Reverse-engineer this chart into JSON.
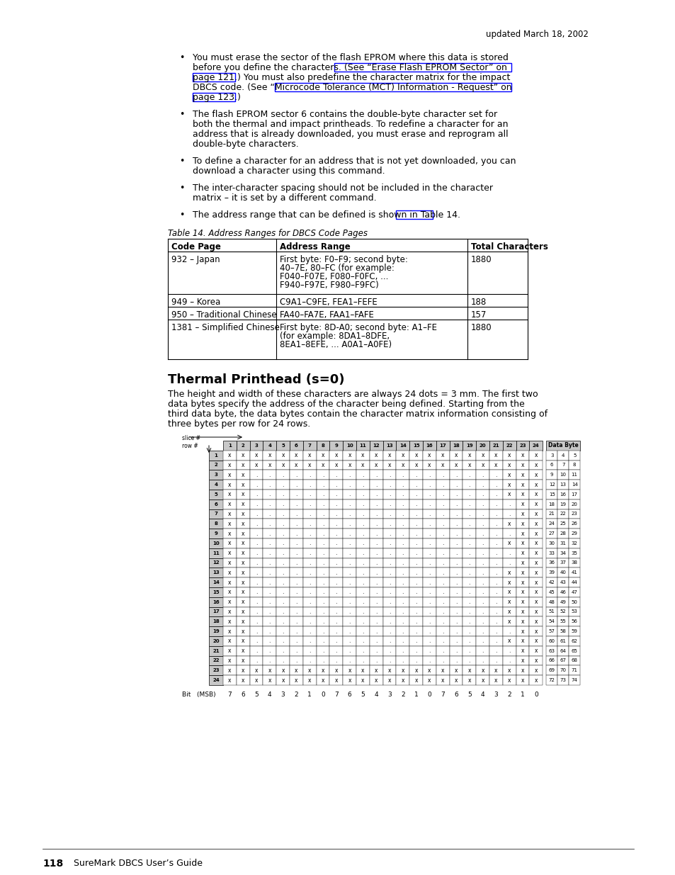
{
  "page_header": "updated March 18, 2002",
  "table_caption": "Table 14. Address Ranges for DBCS Code Pages",
  "table_headers": [
    "Code Page",
    "Address Range",
    "Total Characters"
  ],
  "table_rows": [
    [
      "932 – Japan",
      "First byte: F0–F9; second byte:\n40–7E, 80–FC (for example:\nF040–F07E, F080–F0FC, ...\nF940–F97E, F980–F9FC)",
      "1880"
    ],
    [
      "949 – Korea",
      "C9A1–C9FE, FEA1–FEFE",
      "188"
    ],
    [
      "950 – Traditional Chinese",
      "FA40–FA7E, FAA1–FAFE",
      "157"
    ],
    [
      "1381 – Simplified Chinese",
      "First byte: 8D-A0; second byte: A1–FE\n(for example: 8DA1–8DFE,\n8EA1–8EFE, ... A0A1–A0FE)",
      "1880"
    ]
  ],
  "section_title": "Thermal Printhead (s=0)",
  "section_body_lines": [
    "The height and width of these characters are always 24 dots = 3 mm. The first two",
    "data bytes specify the address of the character being defined. Starting from the",
    "third data byte, the data bytes contain the character matrix information consisting of",
    "three bytes per row for 24 rows."
  ],
  "grid_col_labels": [
    "1",
    "2",
    "3",
    "4",
    "5",
    "6",
    "7",
    "8",
    "9",
    "10",
    "11",
    "12",
    "13",
    "14",
    "15",
    "16",
    "17",
    "18",
    "19",
    "20",
    "21",
    "22",
    "23",
    "24"
  ],
  "grid_row_labels": [
    "1",
    "2",
    "3",
    "4",
    "5",
    "6",
    "7",
    "8",
    "9",
    "10",
    "11",
    "12",
    "13",
    "14",
    "15",
    "16",
    "17",
    "18",
    "19",
    "20",
    "21",
    "22",
    "23",
    "24"
  ],
  "data_byte_label": "Data Byte",
  "data_byte_rows": [
    [
      "3",
      "4",
      "5"
    ],
    [
      "6",
      "7",
      "8"
    ],
    [
      "9",
      "10",
      "11"
    ],
    [
      "12",
      "13",
      "14"
    ],
    [
      "15",
      "16",
      "17"
    ],
    [
      "18",
      "19",
      "20"
    ],
    [
      "21",
      "22",
      "23"
    ],
    [
      "24",
      "25",
      "26"
    ],
    [
      "27",
      "28",
      "29"
    ],
    [
      "30",
      "31",
      "32"
    ],
    [
      "33",
      "34",
      "35"
    ],
    [
      "36",
      "37",
      "38"
    ],
    [
      "39",
      "40",
      "41"
    ],
    [
      "42",
      "43",
      "44"
    ],
    [
      "45",
      "46",
      "47"
    ],
    [
      "48",
      "49",
      "50"
    ],
    [
      "51",
      "52",
      "53"
    ],
    [
      "54",
      "55",
      "56"
    ],
    [
      "57",
      "58",
      "59"
    ],
    [
      "60",
      "61",
      "62"
    ],
    [
      "63",
      "64",
      "65"
    ],
    [
      "66",
      "67",
      "68"
    ],
    [
      "69",
      "70",
      "71"
    ],
    [
      "72",
      "73",
      "74"
    ]
  ],
  "bit_values": [
    "7",
    "6",
    "5",
    "4",
    "3",
    "2",
    "1",
    "0",
    "7",
    "6",
    "5",
    "4",
    "3",
    "2",
    "1",
    "0",
    "7",
    "6",
    "5",
    "4",
    "3",
    "2",
    "1",
    "0"
  ],
  "page_number": "118",
  "page_footer_text": "SureMark DBCS User’s Guide",
  "grid_data": [
    [
      "x",
      "x",
      "x",
      "x",
      "x",
      "x",
      "x",
      "x",
      "x",
      "x",
      "x",
      "x",
      "x",
      "x",
      "x",
      "x",
      "x",
      "x",
      "x",
      "x",
      "x",
      "x",
      "x",
      "x"
    ],
    [
      "x",
      "x",
      "x",
      "x",
      "x",
      "x",
      "x",
      "x",
      "x",
      "x",
      "x",
      "x",
      "x",
      "x",
      "x",
      "x",
      "x",
      "x",
      "x",
      "x",
      "x",
      "x",
      "x",
      "x"
    ],
    [
      "x",
      "x",
      "•",
      "•",
      "•",
      "•",
      "•",
      "•",
      "•",
      "•",
      "•",
      "•",
      "•",
      "•",
      "•",
      "•",
      "•",
      "•",
      "•",
      "•",
      "•",
      "x",
      "x",
      "x"
    ],
    [
      "x",
      "x",
      "•",
      "•",
      "•",
      "•",
      "•",
      "•",
      "•",
      "•",
      "•",
      "•",
      "•",
      "•",
      "•",
      "•",
      "•",
      "•",
      "•",
      "•",
      "•",
      "x",
      "x",
      "x"
    ],
    [
      "x",
      "x",
      "•",
      "•",
      "•",
      "•",
      "•",
      "•",
      "•",
      "•",
      "•",
      "•",
      "•",
      "•",
      "•",
      "•",
      "•",
      "•",
      "•",
      "•",
      "•",
      "x",
      "x",
      "x"
    ],
    [
      "x",
      "x",
      "•",
      "•",
      "•",
      "•",
      "•",
      "•",
      "•",
      "•",
      "•",
      "•",
      "•",
      "•",
      "•",
      "•",
      "•",
      "•",
      "•",
      "•",
      "•",
      "•",
      "x",
      "x"
    ],
    [
      "x",
      "x",
      "•",
      "•",
      "•",
      "•",
      "•",
      "•",
      "•",
      "•",
      "•",
      "•",
      "•",
      "•",
      "•",
      "•",
      "•",
      "•",
      "•",
      "•",
      "•",
      "•",
      "x",
      "x"
    ],
    [
      "x",
      "x",
      "•",
      "•",
      "•",
      "•",
      "•",
      "•",
      "•",
      "•",
      "•",
      "•",
      "•",
      "•",
      "•",
      "•",
      "•",
      "•",
      "•",
      "•",
      "•",
      "x",
      "x",
      "x"
    ],
    [
      "x",
      "x",
      "•",
      "•",
      "•",
      "•",
      "•",
      "•",
      "•",
      "•",
      "•",
      "•",
      "•",
      "•",
      "•",
      "•",
      "•",
      "•",
      "•",
      "•",
      "•",
      "•",
      "x",
      "x"
    ],
    [
      "x",
      "x",
      "•",
      "•",
      "•",
      "•",
      "•",
      "•",
      "•",
      "•",
      "•",
      "•",
      "•",
      "•",
      "•",
      "•",
      "•",
      "•",
      "•",
      "•",
      "•",
      "x",
      "x",
      "x"
    ],
    [
      "x",
      "x",
      "•",
      "•",
      "•",
      "•",
      "•",
      "•",
      "•",
      "•",
      "•",
      "•",
      "•",
      "•",
      "•",
      "•",
      "•",
      "•",
      "•",
      "•",
      "•",
      "•",
      "x",
      "x"
    ],
    [
      "x",
      "x",
      "•",
      "•",
      "•",
      "•",
      "•",
      "•",
      "•",
      "•",
      "•",
      "•",
      "•",
      "•",
      "•",
      "•",
      "•",
      "•",
      "•",
      "•",
      "•",
      "•",
      "x",
      "x"
    ],
    [
      "x",
      "x",
      "•",
      "•",
      "•",
      "•",
      "•",
      "•",
      "•",
      "•",
      "•",
      "•",
      "•",
      "•",
      "•",
      "•",
      "•",
      "•",
      "•",
      "•",
      "•",
      "x",
      "x",
      "x"
    ],
    [
      "x",
      "x",
      "•",
      "•",
      "•",
      "•",
      "•",
      "•",
      "•",
      "•",
      "•",
      "•",
      "•",
      "•",
      "•",
      "•",
      "•",
      "•",
      "•",
      "•",
      "•",
      "x",
      "x",
      "x"
    ],
    [
      "x",
      "x",
      "•",
      "•",
      "•",
      "•",
      "•",
      "•",
      "•",
      "•",
      "•",
      "•",
      "•",
      "•",
      "•",
      "•",
      "•",
      "•",
      "•",
      "•",
      "•",
      "x",
      "x",
      "x"
    ],
    [
      "x",
      "x",
      "•",
      "•",
      "•",
      "•",
      "•",
      "•",
      "•",
      "•",
      "•",
      "•",
      "•",
      "•",
      "•",
      "•",
      "•",
      "•",
      "•",
      "•",
      "•",
      "x",
      "x",
      "x"
    ],
    [
      "x",
      "x",
      "•",
      "•",
      "•",
      "•",
      "•",
      "•",
      "•",
      "•",
      "•",
      "•",
      "•",
      "•",
      "•",
      "•",
      "•",
      "•",
      "•",
      "•",
      "•",
      "x",
      "x",
      "x"
    ],
    [
      "x",
      "x",
      "•",
      "•",
      "•",
      "•",
      "•",
      "•",
      "•",
      "•",
      "•",
      "•",
      "•",
      "•",
      "•",
      "•",
      "•",
      "•",
      "•",
      "•",
      "•",
      "x",
      "x",
      "x"
    ],
    [
      "x",
      "x",
      "•",
      "•",
      "•",
      "•",
      "•",
      "•",
      "•",
      "•",
      "•",
      "•",
      "•",
      "•",
      "•",
      "•",
      "•",
      "•",
      "•",
      "•",
      "•",
      "•",
      "x",
      "x"
    ],
    [
      "x",
      "x",
      "•",
      "•",
      "•",
      "•",
      "•",
      "•",
      "•",
      "•",
      "•",
      "•",
      "•",
      "•",
      "•",
      "•",
      "•",
      "•",
      "•",
      "•",
      "•",
      "x",
      "x",
      "x"
    ],
    [
      "x",
      "x",
      "•",
      "•",
      "•",
      "•",
      "•",
      "•",
      "•",
      "•",
      "•",
      "•",
      "•",
      "•",
      "•",
      "•",
      "•",
      "•",
      "•",
      "•",
      "•",
      "•",
      "x",
      "x"
    ],
    [
      "x",
      "x",
      "•",
      "•",
      "•",
      "•",
      "•",
      "•",
      "•",
      "•",
      "•",
      "•",
      "•",
      "•",
      "•",
      "•",
      "•",
      "•",
      "•",
      "•",
      "•",
      "•",
      "x",
      "x"
    ],
    [
      "x",
      "x",
      "x",
      "x",
      "x",
      "x",
      "x",
      "x",
      "x",
      "x",
      "x",
      "x",
      "x",
      "x",
      "x",
      "x",
      "x",
      "x",
      "x",
      "x",
      "x",
      "x",
      "x",
      "x"
    ],
    [
      "x",
      "x",
      "x",
      "x",
      "x",
      "x",
      "x",
      "x",
      "x",
      "x",
      "x",
      "x",
      "x",
      "x",
      "x",
      "x",
      "x",
      "x",
      "x",
      "x",
      "x",
      "x",
      "x",
      "x"
    ]
  ]
}
